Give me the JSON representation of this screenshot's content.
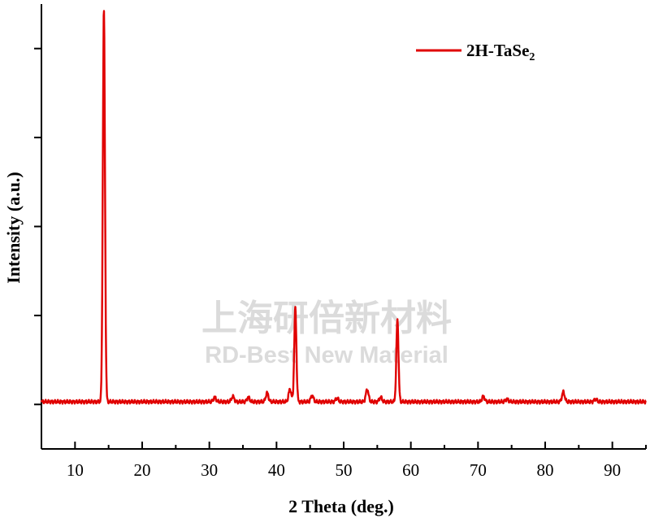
{
  "chart_data": {
    "type": "line",
    "xlabel": "2 Theta (deg.)",
    "ylabel": "Intensity (a.u.)",
    "xlim": [
      5,
      95
    ],
    "ylim": [
      -0.5,
      4.5
    ],
    "x_ticks": [
      10,
      20,
      30,
      40,
      50,
      60,
      70,
      80,
      90
    ],
    "y_ticks_labeled": false,
    "grid": false,
    "legend_position": "top-right",
    "series": [
      {
        "name": "2H-TaSe2",
        "color": "#e00000",
        "baseline": 0.03,
        "peaks": [
          {
            "x": 14.3,
            "y": 4.4
          },
          {
            "x": 30.8,
            "y": 0.05
          },
          {
            "x": 33.5,
            "y": 0.06
          },
          {
            "x": 35.8,
            "y": 0.05
          },
          {
            "x": 38.6,
            "y": 0.1
          },
          {
            "x": 42.0,
            "y": 0.14
          },
          {
            "x": 42.8,
            "y": 1.05
          },
          {
            "x": 45.3,
            "y": 0.07
          },
          {
            "x": 49.0,
            "y": 0.04
          },
          {
            "x": 53.5,
            "y": 0.14
          },
          {
            "x": 55.5,
            "y": 0.05
          },
          {
            "x": 58.0,
            "y": 0.92
          },
          {
            "x": 70.8,
            "y": 0.06
          },
          {
            "x": 74.3,
            "y": 0.03
          },
          {
            "x": 82.7,
            "y": 0.11
          },
          {
            "x": 87.5,
            "y": 0.03
          }
        ]
      }
    ]
  },
  "legend": {
    "label_main": "2H-TaSe",
    "label_sub": "2"
  },
  "watermark": {
    "line1": "上海研倍新材料",
    "line2": "RD-Best New Material"
  }
}
